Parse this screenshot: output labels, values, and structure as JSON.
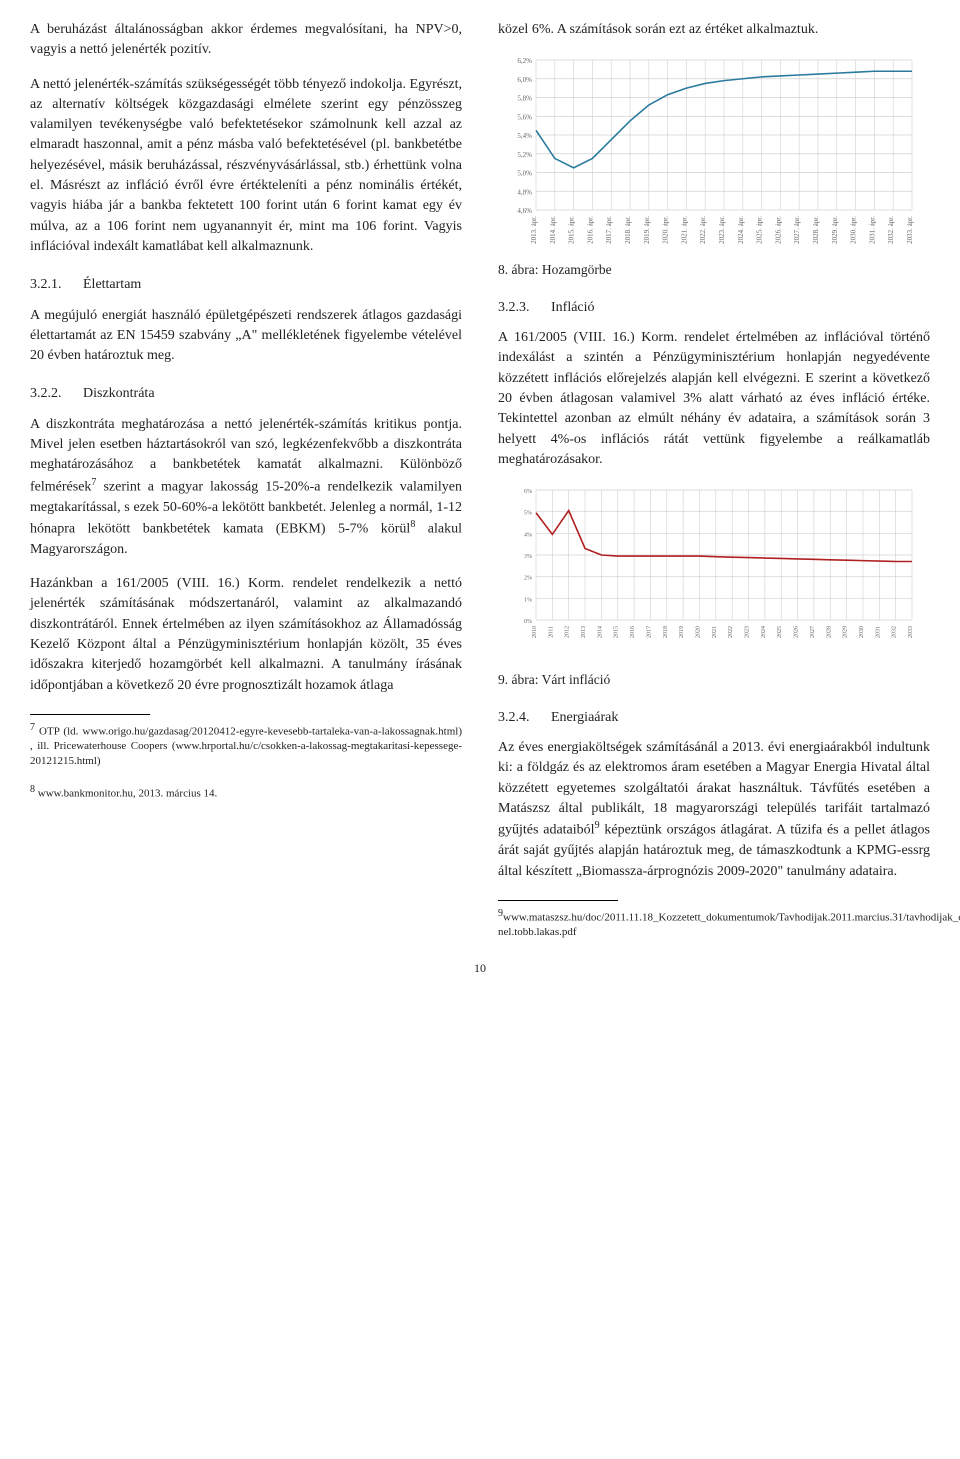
{
  "left": {
    "p1": "A beruházást általánosságban akkor érdemes megvalósítani, ha NPV>0, vagyis a nettó jelenérték pozitív.",
    "p2": "A nettó jelenérték-számítás szükségességét több tényező indokolja. Egyrészt, az alternatív költségek közgazdasági elmélete szerint egy pénzösszeg valamilyen tevékenységbe való befektetésekor számolnunk kell azzal az elmaradt haszonnal, amit a pénz másba való befektetésével (pl. bankbetétbe helyezésével, másik beruházással, részvényvásárlással, stb.) érhettünk volna el. Másrészt az infláció évről évre értékteleníti a pénz nominális értékét, vagyis hiába jár a bankba fektetett 100 forint után 6 forint kamat egy év múlva, az a 106 forint nem ugyanannyit ér, mint ma 106 forint. Vagyis inflációval indexált kamatlábat kell alkalmaznunk.",
    "h321_num": "3.2.1.",
    "h321": "Élettartam",
    "p321": "A megújuló energiát használó épületgépészeti rendszerek átlagos gazdasági élettartamát az EN 15459 szabvány „A\" mellékletének figyelembe vételével 20 évben határoztuk meg.",
    "h322_num": "3.2.2.",
    "h322": "Diszkontráta",
    "p322a": "A diszkontráta meghatározása a nettó jelenérték-számítás kritikus pontja. Mivel jelen esetben háztartásokról van szó, legkézenfekvőbb a diszkontráta meghatározásához a bankbetétek kamatát alkalmazni. Különböző felmérések",
    "p322a_tail": " szerint a magyar lakosság 15-20%-a rendelkezik valamilyen megtakarítással, s ezek 50-60%-a lekötött bankbetét. Jelenleg a normál, 1-12 hónapra lekötött bankbetétek kamata (EBKM) 5-7% körül",
    "p322a_tail2": " alakul Magyarországon.",
    "p322b": "Hazánkban a 161/2005 (VIII. 16.) Korm. rendelet rendelkezik a nettó jelenérték számításának módszertanáról, valamint az alkalmazandó diszkontrátáról. Ennek értelmében az ilyen számításokhoz az Államadósság Kezelő Központ által a Pénzügyminisztérium honlapján közölt, 35 éves időszakra kiterjedő hozamgörbét kell alkalmazni. A tanulmány írásának időpontjában a következő 20 évre prognosztizált hozamok átlaga",
    "fn7": " OTP (ld. www.origo.hu/gazdasag/20120412-egyre-kevesebb-tartaleka-van-a-lakossagnak.html) , ill. Pricewaterhouse Coopers (www.hrportal.hu/c/csokken-a-lakossag-megtakaritasi-kepessege-20121215.html)",
    "fn8": " www.bankmonitor.hu, 2013. március 14."
  },
  "right": {
    "p_top": "közel 6%. A számítások során ezt az értéket alkalmaztuk.",
    "cap8": "8. ábra: Hozamgörbe",
    "h323_num": "3.2.3.",
    "h323": "Infláció",
    "p323": "A 161/2005 (VIII. 16.) Korm. rendelet értelmében az inflációval történő indexálást a szintén a Pénzügyminisztérium honlapján negyedévente közzétett inflációs előrejelzés alapján kell elvégezni. E szerint a következő 20 évben átlagosan valamivel 3% alatt várható az éves infláció értéke. Tekintettel azonban az elmúlt néhány év adataira, a számítások során 3 helyett 4%-os inflációs rátát vettünk figyelembe a reálkamatláb meghatározásakor.",
    "cap9": "9. ábra: Várt infláció",
    "h324_num": "3.2.4.",
    "h324": "Energiaárak",
    "p324": "Az éves energiaköltségek számításánál a 2013. évi energiaárakból indultunk ki: a földgáz és az elektromos áram esetében a Magyar Energia Hivatal által közzétett egyetemes szolgáltatói árakat használtuk. Távfűtés esetében a Matászsz által publikált, 18 magyarországi település tarifáit tartalmazó gyűjtés adataiból",
    "p324_tail": " képeztünk országos átlagárat. A tűzifa és a pellet átlagos árát saját gyűjtés alapján határoztuk meg, de támaszkodtunk a KPMG-essrg által készített „Biomassza-árprognózis 2009-2020\" tanulmány adataira.",
    "fn9": "www.mataszsz.hu/doc/2011.11.18_Kozzetett_dokumentumok/Tavhodijak.2011.marcius.31/tavhodijak_osszehasonlitasa_6000-nel.tobb.lakas.pdf"
  },
  "chart8": {
    "type": "line",
    "series_color": "#2a7a9e",
    "grid_color": "#d0d0d0",
    "background_color": "#ffffff",
    "text_color": "#666666",
    "ylim": [
      4.6,
      6.2
    ],
    "ystep": 0.2,
    "yticklabels": [
      "4,6%",
      "4,8%",
      "5,0%",
      "5,2%",
      "5,4%",
      "5,6%",
      "5,8%",
      "6,0%",
      "6,2%"
    ],
    "xlabels": [
      "2013. ápr.",
      "2014. ápr.",
      "2015. ápr.",
      "2016. ápr.",
      "2017. ápr.",
      "2018. ápr.",
      "2019. ápr.",
      "2020. ápr.",
      "2021. ápr.",
      "2022. ápr.",
      "2023. ápr.",
      "2024. ápr.",
      "2025. ápr.",
      "2026. ápr.",
      "2027. ápr.",
      "2028. ápr.",
      "2029. ápr.",
      "2030. ápr.",
      "2031. ápr.",
      "2032. ápr.",
      "2033. ápr."
    ],
    "values": [
      5.45,
      5.15,
      5.05,
      5.15,
      5.35,
      5.55,
      5.72,
      5.83,
      5.9,
      5.95,
      5.98,
      6.0,
      6.02,
      6.03,
      6.04,
      6.05,
      6.06,
      6.07,
      6.08,
      6.08,
      6.08
    ],
    "label_fontsize": 7
  },
  "chart9": {
    "type": "line",
    "series_color": "#b02020",
    "grid_color": "#d0d0d0",
    "background_color": "#ffffff",
    "text_color": "#666666",
    "ylim": [
      0,
      6
    ],
    "ystep": 1,
    "yticklabels": [
      "0%",
      "1%",
      "2%",
      "3%",
      "4%",
      "5%",
      "6%"
    ],
    "xlabels": [
      "2010",
      "2011",
      "2012",
      "2013",
      "2014",
      "2015",
      "2016",
      "2017",
      "2018",
      "2019",
      "2020",
      "2021",
      "2022",
      "2023",
      "2024",
      "2025",
      "2026",
      "2027",
      "2028",
      "2029",
      "2030",
      "2031",
      "2032",
      "2033"
    ],
    "values": [
      4.95,
      3.95,
      5.05,
      3.3,
      3.0,
      2.95,
      2.95,
      2.95,
      2.95,
      2.95,
      2.95,
      2.92,
      2.9,
      2.88,
      2.86,
      2.84,
      2.82,
      2.8,
      2.78,
      2.76,
      2.74,
      2.72,
      2.7,
      2.7
    ],
    "label_fontsize": 6
  },
  "page_number": "10"
}
